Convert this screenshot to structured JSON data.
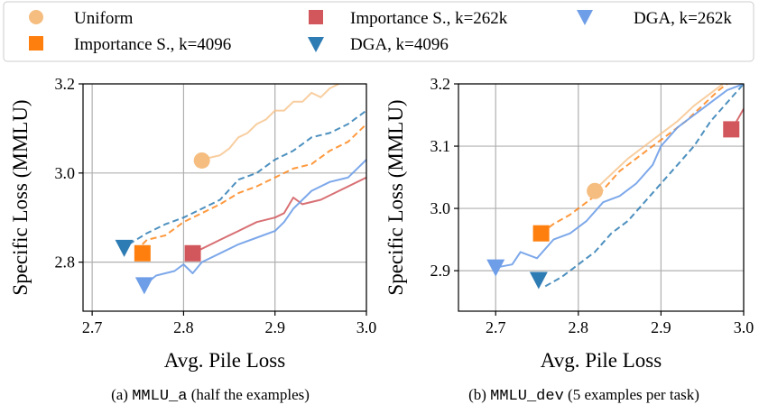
{
  "legend": {
    "entries": [
      {
        "label": "Uniform",
        "color": "#F5BD80",
        "marker": "circle"
      },
      {
        "label": "Importance S., k=4096",
        "color": "#FF7F0E",
        "marker": "square"
      },
      {
        "label": "Importance S., k=262k",
        "color": "#D1575C",
        "marker": "square"
      },
      {
        "label": "DGA, k=4096",
        "color": "#2E7CB4",
        "marker": "triangle-down"
      },
      {
        "label": "DGA, k=262k",
        "color": "#6F9EE8",
        "marker": "triangle-down"
      }
    ]
  },
  "captions": {
    "a": {
      "prefix": "(a) ",
      "code": "MMLU_a",
      "suffix": " (half the examples)"
    },
    "b": {
      "prefix": "(b) ",
      "code": "MMLU_dev",
      "suffix": " (5 examples per task)"
    }
  },
  "chart_data": [
    {
      "type": "line",
      "xlabel": "Avg. Pile Loss",
      "ylabel": "Specific Loss (MMLU)",
      "xlim": [
        2.69,
        3.0
      ],
      "ylim": [
        2.69,
        3.2
      ],
      "xticks": [
        "2.7",
        "2.8",
        "2.9",
        "3.0"
      ],
      "yticks": [
        "2.8",
        "3.0",
        "3.2"
      ],
      "xtick_values": [
        2.7,
        2.8,
        2.9,
        3.0
      ],
      "ytick_values": [
        2.8,
        3.0,
        3.2
      ],
      "grid": true,
      "series": [
        {
          "name": "Uniform",
          "style": "solid",
          "color": "#F5BD80",
          "alpha": 0.75,
          "points": [
            [
              2.82,
              3.03
            ],
            [
              2.83,
              3.035
            ],
            [
              2.84,
              3.04
            ],
            [
              2.85,
              3.055
            ],
            [
              2.86,
              3.08
            ],
            [
              2.87,
              3.09
            ],
            [
              2.88,
              3.11
            ],
            [
              2.89,
              3.12
            ],
            [
              2.9,
              3.14
            ],
            [
              2.91,
              3.14
            ],
            [
              2.92,
              3.16
            ],
            [
              2.93,
              3.16
            ],
            [
              2.94,
              3.18
            ],
            [
              2.95,
              3.17
            ],
            [
              2.96,
              3.19
            ],
            [
              2.97,
              3.2
            ]
          ],
          "marker": [
            2.82,
            3.028
          ]
        },
        {
          "name": "Importance S., k=4096",
          "style": "dashed",
          "color": "#FF7F0E",
          "alpha": 0.8,
          "points": [
            [
              2.755,
              2.84
            ],
            [
              2.76,
              2.85
            ],
            [
              2.78,
              2.86
            ],
            [
              2.8,
              2.89
            ],
            [
              2.82,
              2.91
            ],
            [
              2.84,
              2.93
            ],
            [
              2.86,
              2.955
            ],
            [
              2.88,
              2.97
            ],
            [
              2.9,
              2.99
            ],
            [
              2.92,
              3.01
            ],
            [
              2.94,
              3.02
            ],
            [
              2.96,
              3.05
            ],
            [
              2.98,
              3.07
            ],
            [
              3.0,
              3.11
            ]
          ],
          "marker": [
            2.755,
            2.82
          ]
        },
        {
          "name": "Importance S., k=262k",
          "style": "solid",
          "color": "#D1575C",
          "alpha": 0.85,
          "points": [
            [
              2.81,
              2.82
            ],
            [
              2.82,
              2.83
            ],
            [
              2.84,
              2.85
            ],
            [
              2.86,
              2.87
            ],
            [
              2.88,
              2.89
            ],
            [
              2.9,
              2.9
            ],
            [
              2.91,
              2.91
            ],
            [
              2.92,
              2.945
            ],
            [
              2.93,
              2.93
            ],
            [
              2.95,
              2.94
            ],
            [
              2.97,
              2.96
            ],
            [
              3.0,
              2.99
            ]
          ],
          "marker": [
            2.81,
            2.82
          ]
        },
        {
          "name": "DGA, k=4096",
          "style": "dashed",
          "color": "#2E7CB4",
          "alpha": 0.85,
          "points": [
            [
              2.74,
              2.84
            ],
            [
              2.76,
              2.865
            ],
            [
              2.78,
              2.885
            ],
            [
              2.8,
              2.9
            ],
            [
              2.82,
              2.92
            ],
            [
              2.84,
              2.94
            ],
            [
              2.86,
              2.985
            ],
            [
              2.88,
              3.0
            ],
            [
              2.9,
              3.03
            ],
            [
              2.92,
              3.05
            ],
            [
              2.94,
              3.08
            ],
            [
              2.96,
              3.09
            ],
            [
              2.98,
              3.11
            ],
            [
              3.0,
              3.14
            ]
          ],
          "marker": [
            2.735,
            2.832
          ]
        },
        {
          "name": "DGA, k=262k",
          "style": "solid",
          "color": "#6F9EE8",
          "alpha": 0.9,
          "points": [
            [
              2.755,
              2.745
            ],
            [
              2.77,
              2.77
            ],
            [
              2.79,
              2.78
            ],
            [
              2.8,
              2.795
            ],
            [
              2.81,
              2.775
            ],
            [
              2.82,
              2.8
            ],
            [
              2.84,
              2.82
            ],
            [
              2.86,
              2.84
            ],
            [
              2.88,
              2.855
            ],
            [
              2.9,
              2.87
            ],
            [
              2.91,
              2.89
            ],
            [
              2.92,
              2.92
            ],
            [
              2.94,
              2.96
            ],
            [
              2.96,
              2.98
            ],
            [
              2.98,
              2.99
            ],
            [
              3.0,
              3.03
            ]
          ],
          "marker": [
            2.757,
            2.748
          ]
        }
      ]
    },
    {
      "type": "line",
      "xlabel": "Avg. Pile Loss",
      "ylabel": "Specific Loss (MMLU)",
      "xlim": [
        2.655,
        3.0
      ],
      "ylim": [
        2.835,
        3.2
      ],
      "xticks": [
        "2.7",
        "2.8",
        "2.9",
        "3.0"
      ],
      "yticks": [
        "2.9",
        "3.0",
        "3.1",
        "3.2"
      ],
      "xtick_values": [
        2.7,
        2.8,
        2.9,
        3.0
      ],
      "ytick_values": [
        2.9,
        3.0,
        3.1,
        3.2
      ],
      "grid": true,
      "series": [
        {
          "name": "Uniform",
          "style": "solid",
          "color": "#F5BD80",
          "alpha": 0.75,
          "points": [
            [
              2.82,
              3.03
            ],
            [
              2.84,
              3.055
            ],
            [
              2.86,
              3.08
            ],
            [
              2.88,
              3.1
            ],
            [
              2.9,
              3.12
            ],
            [
              2.92,
              3.14
            ],
            [
              2.94,
              3.165
            ],
            [
              2.96,
              3.185
            ],
            [
              2.975,
              3.2
            ]
          ],
          "marker": [
            2.82,
            3.028
          ]
        },
        {
          "name": "Importance S., k=4096",
          "style": "dashed",
          "color": "#FF7F0E",
          "alpha": 0.8,
          "points": [
            [
              2.755,
              2.96
            ],
            [
              2.77,
              2.975
            ],
            [
              2.79,
              2.99
            ],
            [
              2.81,
              3.01
            ],
            [
              2.83,
              3.03
            ],
            [
              2.85,
              3.06
            ],
            [
              2.87,
              3.08
            ],
            [
              2.89,
              3.1
            ],
            [
              2.91,
              3.12
            ],
            [
              2.93,
              3.14
            ],
            [
              2.95,
              3.165
            ],
            [
              2.97,
              3.19
            ],
            [
              2.98,
              3.2
            ]
          ],
          "marker": [
            2.755,
            2.96
          ]
        },
        {
          "name": "Importance S., k=262k",
          "style": "solid",
          "color": "#D1575C",
          "alpha": 0.85,
          "points": [
            [
              2.985,
              3.125
            ],
            [
              3.0,
              3.16
            ]
          ],
          "marker": [
            2.985,
            3.127
          ]
        },
        {
          "name": "DGA, k=4096",
          "style": "dashed",
          "color": "#2E7CB4",
          "alpha": 0.85,
          "points": [
            [
              2.76,
              2.875
            ],
            [
              2.78,
              2.89
            ],
            [
              2.8,
              2.91
            ],
            [
              2.82,
              2.93
            ],
            [
              2.84,
              2.96
            ],
            [
              2.86,
              2.98
            ],
            [
              2.88,
              3.01
            ],
            [
              2.9,
              3.04
            ],
            [
              2.92,
              3.07
            ],
            [
              2.94,
              3.1
            ],
            [
              2.96,
              3.14
            ],
            [
              2.98,
              3.17
            ],
            [
              3.0,
              3.2
            ]
          ],
          "marker": [
            2.752,
            2.885
          ]
        },
        {
          "name": "DGA, k=262k",
          "style": "solid",
          "color": "#6F9EE8",
          "alpha": 0.9,
          "points": [
            [
              2.7,
              2.905
            ],
            [
              2.72,
              2.91
            ],
            [
              2.73,
              2.93
            ],
            [
              2.75,
              2.92
            ],
            [
              2.77,
              2.95
            ],
            [
              2.79,
              2.96
            ],
            [
              2.81,
              2.98
            ],
            [
              2.83,
              3.01
            ],
            [
              2.85,
              3.02
            ],
            [
              2.87,
              3.04
            ],
            [
              2.89,
              3.07
            ],
            [
              2.9,
              3.1
            ],
            [
              2.92,
              3.13
            ],
            [
              2.94,
              3.15
            ],
            [
              2.96,
              3.17
            ],
            [
              2.98,
              3.19
            ],
            [
              3.0,
              3.2
            ]
          ],
          "marker": [
            2.7,
            2.905
          ]
        }
      ]
    }
  ]
}
